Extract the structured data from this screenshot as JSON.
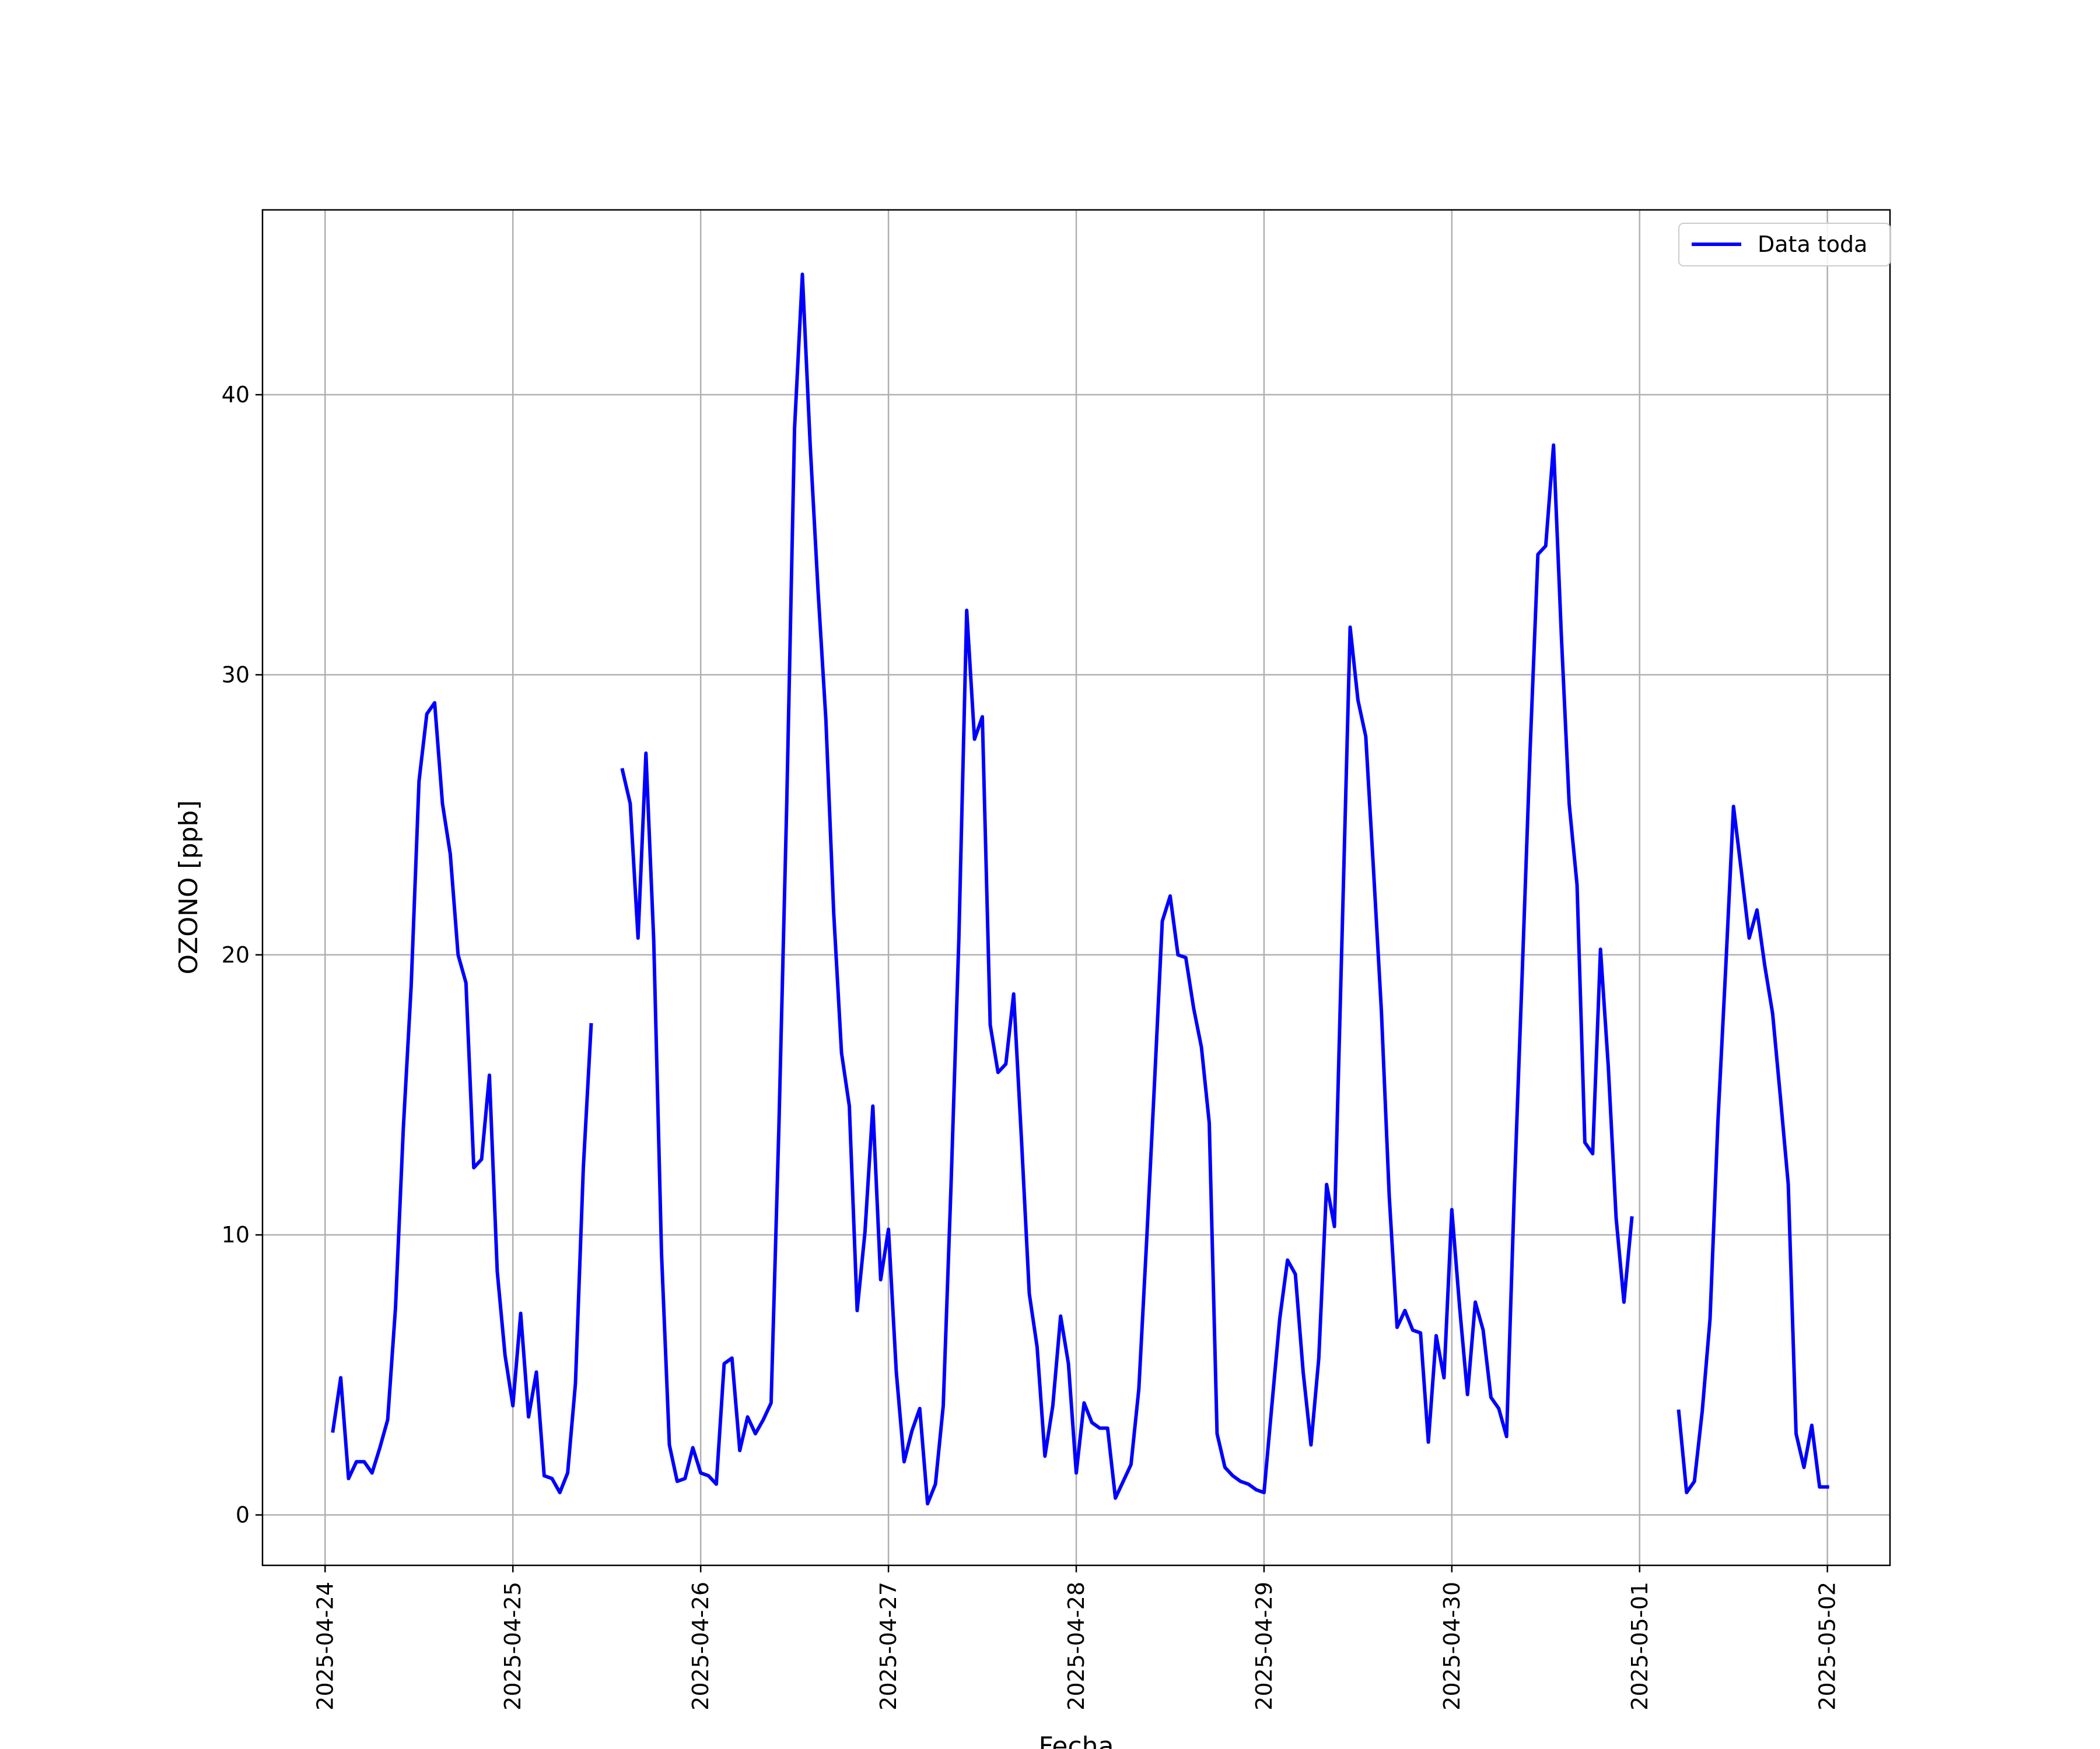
{
  "chart_data": {
    "type": "line",
    "xlabel": "Fecha",
    "ylabel": "OZONO [ppb]",
    "xlim": [
      "2025-04-23T16:00",
      "2025-05-02T08:00"
    ],
    "ylim": [
      -1.8,
      46.6
    ],
    "x_ticks": [
      "2025-04-24",
      "2025-04-25",
      "2025-04-26",
      "2025-04-27",
      "2025-04-28",
      "2025-04-29",
      "2025-04-30",
      "2025-05-01",
      "2025-05-02"
    ],
    "y_ticks": [
      0,
      10,
      20,
      30,
      40
    ],
    "grid": true,
    "legend": {
      "position": "top-right",
      "entries": [
        "Data toda"
      ]
    },
    "series": [
      {
        "name": "Data toda",
        "color": "#0000ff",
        "points": [
          [
            "2025-04-24T01:00",
            3.0
          ],
          [
            "2025-04-24T02:00",
            4.9
          ],
          [
            "2025-04-24T03:00",
            1.3
          ],
          [
            "2025-04-24T04:00",
            1.9
          ],
          [
            "2025-04-24T05:00",
            1.9
          ],
          [
            "2025-04-24T06:00",
            1.5
          ],
          [
            "2025-04-24T07:00",
            2.4
          ],
          [
            "2025-04-24T08:00",
            3.4
          ],
          [
            "2025-04-24T09:00",
            7.4
          ],
          [
            "2025-04-24T10:00",
            13.8
          ],
          [
            "2025-04-24T11:00",
            18.9
          ],
          [
            "2025-04-24T12:00",
            26.2
          ],
          [
            "2025-04-24T13:00",
            28.6
          ],
          [
            "2025-04-24T14:00",
            29.0
          ],
          [
            "2025-04-24T15:00",
            25.4
          ],
          [
            "2025-04-24T16:00",
            23.6
          ],
          [
            "2025-04-24T17:00",
            20.0
          ],
          [
            "2025-04-24T18:00",
            19.0
          ],
          [
            "2025-04-24T19:00",
            12.4
          ],
          [
            "2025-04-24T20:00",
            12.7
          ],
          [
            "2025-04-24T21:00",
            15.7
          ],
          [
            "2025-04-24T22:00",
            8.7
          ],
          [
            "2025-04-24T23:00",
            5.7
          ],
          [
            "2025-04-25T00:00",
            3.9
          ],
          [
            "2025-04-25T01:00",
            7.2
          ],
          [
            "2025-04-25T02:00",
            3.5
          ],
          [
            "2025-04-25T03:00",
            5.1
          ],
          [
            "2025-04-25T04:00",
            1.4
          ],
          [
            "2025-04-25T05:00",
            1.3
          ],
          [
            "2025-04-25T06:00",
            0.8
          ],
          [
            "2025-04-25T07:00",
            1.5
          ],
          [
            "2025-04-25T08:00",
            4.7
          ],
          [
            "2025-04-25T09:00",
            12.4
          ],
          [
            "2025-04-25T10:00",
            17.5
          ],
          [
            "2025-04-25T11:00",
            null
          ],
          [
            "2025-04-25T12:00",
            null
          ],
          [
            "2025-04-25T13:00",
            null
          ],
          [
            "2025-04-25T14:00",
            26.6
          ],
          [
            "2025-04-25T15:00",
            25.4
          ],
          [
            "2025-04-25T16:00",
            20.6
          ],
          [
            "2025-04-25T17:00",
            27.2
          ],
          [
            "2025-04-25T18:00",
            20.5
          ],
          [
            "2025-04-25T19:00",
            9.3
          ],
          [
            "2025-04-25T20:00",
            2.5
          ],
          [
            "2025-04-25T21:00",
            1.2
          ],
          [
            "2025-04-25T22:00",
            1.3
          ],
          [
            "2025-04-25T23:00",
            2.4
          ],
          [
            "2025-04-26T00:00",
            1.5
          ],
          [
            "2025-04-26T01:00",
            1.4
          ],
          [
            "2025-04-26T02:00",
            1.1
          ],
          [
            "2025-04-26T03:00",
            5.4
          ],
          [
            "2025-04-26T04:00",
            5.6
          ],
          [
            "2025-04-26T05:00",
            2.3
          ],
          [
            "2025-04-26T06:00",
            3.5
          ],
          [
            "2025-04-26T07:00",
            2.9
          ],
          [
            "2025-04-26T08:00",
            3.4
          ],
          [
            "2025-04-26T09:00",
            4.0
          ],
          [
            "2025-04-26T10:00",
            13.9
          ],
          [
            "2025-04-26T11:00",
            25.4
          ],
          [
            "2025-04-26T12:00",
            38.8
          ],
          [
            "2025-04-26T13:00",
            44.3
          ],
          [
            "2025-04-26T14:00",
            38.2
          ],
          [
            "2025-04-26T15:00",
            33.0
          ],
          [
            "2025-04-26T16:00",
            28.4
          ],
          [
            "2025-04-26T17:00",
            21.5
          ],
          [
            "2025-04-26T18:00",
            16.5
          ],
          [
            "2025-04-26T19:00",
            14.6
          ],
          [
            "2025-04-26T20:00",
            7.3
          ],
          [
            "2025-04-26T21:00",
            10.1
          ],
          [
            "2025-04-26T22:00",
            14.6
          ],
          [
            "2025-04-26T23:00",
            8.4
          ],
          [
            "2025-04-27T00:00",
            10.2
          ],
          [
            "2025-04-27T01:00",
            5.1
          ],
          [
            "2025-04-27T02:00",
            1.9
          ],
          [
            "2025-04-27T03:00",
            3.0
          ],
          [
            "2025-04-27T04:00",
            3.8
          ],
          [
            "2025-04-27T05:00",
            0.4
          ],
          [
            "2025-04-27T06:00",
            1.1
          ],
          [
            "2025-04-27T07:00",
            3.9
          ],
          [
            "2025-04-27T08:00",
            11.8
          ],
          [
            "2025-04-27T09:00",
            20.6
          ],
          [
            "2025-04-27T10:00",
            32.3
          ],
          [
            "2025-04-27T11:00",
            27.7
          ],
          [
            "2025-04-27T12:00",
            28.5
          ],
          [
            "2025-04-27T13:00",
            17.5
          ],
          [
            "2025-04-27T14:00",
            15.8
          ],
          [
            "2025-04-27T15:00",
            16.1
          ],
          [
            "2025-04-27T16:00",
            18.6
          ],
          [
            "2025-04-27T17:00",
            13.4
          ],
          [
            "2025-04-27T18:00",
            7.9
          ],
          [
            "2025-04-27T19:00",
            6.0
          ],
          [
            "2025-04-27T20:00",
            2.1
          ],
          [
            "2025-04-27T21:00",
            3.9
          ],
          [
            "2025-04-27T22:00",
            7.1
          ],
          [
            "2025-04-27T23:00",
            5.4
          ],
          [
            "2025-04-28T00:00",
            1.5
          ],
          [
            "2025-04-28T01:00",
            4.0
          ],
          [
            "2025-04-28T02:00",
            3.3
          ],
          [
            "2025-04-28T03:00",
            3.1
          ],
          [
            "2025-04-28T04:00",
            3.1
          ],
          [
            "2025-04-28T05:00",
            0.6
          ],
          [
            "2025-04-28T06:00",
            1.2
          ],
          [
            "2025-04-28T07:00",
            1.8
          ],
          [
            "2025-04-28T08:00",
            4.5
          ],
          [
            "2025-04-28T09:00",
            9.8
          ],
          [
            "2025-04-28T10:00",
            15.4
          ],
          [
            "2025-04-28T11:00",
            21.2
          ],
          [
            "2025-04-28T12:00",
            22.1
          ],
          [
            "2025-04-28T13:00",
            20.0
          ],
          [
            "2025-04-28T14:00",
            19.9
          ],
          [
            "2025-04-28T15:00",
            18.1
          ],
          [
            "2025-04-28T16:00",
            16.7
          ],
          [
            "2025-04-28T17:00",
            14.0
          ],
          [
            "2025-04-28T18:00",
            2.9
          ],
          [
            "2025-04-28T19:00",
            1.7
          ],
          [
            "2025-04-28T20:00",
            1.4
          ],
          [
            "2025-04-28T21:00",
            1.2
          ],
          [
            "2025-04-28T22:00",
            1.1
          ],
          [
            "2025-04-28T23:00",
            0.9
          ],
          [
            "2025-04-29T00:00",
            0.8
          ],
          [
            "2025-04-29T01:00",
            3.9
          ],
          [
            "2025-04-29T02:00",
            7.0
          ],
          [
            "2025-04-29T03:00",
            9.1
          ],
          [
            "2025-04-29T04:00",
            8.6
          ],
          [
            "2025-04-29T05:00",
            5.1
          ],
          [
            "2025-04-29T06:00",
            2.5
          ],
          [
            "2025-04-29T07:00",
            5.6
          ],
          [
            "2025-04-29T08:00",
            11.8
          ],
          [
            "2025-04-29T09:00",
            10.3
          ],
          [
            "2025-04-29T10:00",
            21.0
          ],
          [
            "2025-04-29T11:00",
            31.7
          ],
          [
            "2025-04-29T12:00",
            29.1
          ],
          [
            "2025-04-29T13:00",
            27.8
          ],
          [
            "2025-04-29T14:00",
            23.0
          ],
          [
            "2025-04-29T15:00",
            18.0
          ],
          [
            "2025-04-29T16:00",
            11.4
          ],
          [
            "2025-04-29T17:00",
            6.7
          ],
          [
            "2025-04-29T18:00",
            7.3
          ],
          [
            "2025-04-29T19:00",
            6.6
          ],
          [
            "2025-04-29T20:00",
            6.5
          ],
          [
            "2025-04-29T21:00",
            2.6
          ],
          [
            "2025-04-29T22:00",
            6.4
          ],
          [
            "2025-04-29T23:00",
            4.9
          ],
          [
            "2025-04-30T00:00",
            10.9
          ],
          [
            "2025-04-30T01:00",
            7.4
          ],
          [
            "2025-04-30T02:00",
            4.3
          ],
          [
            "2025-04-30T03:00",
            7.6
          ],
          [
            "2025-04-30T04:00",
            6.6
          ],
          [
            "2025-04-30T05:00",
            4.2
          ],
          [
            "2025-04-30T06:00",
            3.8
          ],
          [
            "2025-04-30T07:00",
            2.8
          ],
          [
            "2025-04-30T08:00",
            11.7
          ],
          [
            "2025-04-30T09:00",
            19.4
          ],
          [
            "2025-04-30T10:00",
            27.3
          ],
          [
            "2025-04-30T11:00",
            34.3
          ],
          [
            "2025-04-30T12:00",
            34.6
          ],
          [
            "2025-04-30T13:00",
            38.2
          ],
          [
            "2025-04-30T14:00",
            31.4
          ],
          [
            "2025-04-30T15:00",
            25.4
          ],
          [
            "2025-04-30T16:00",
            22.5
          ],
          [
            "2025-04-30T17:00",
            13.3
          ],
          [
            "2025-04-30T18:00",
            12.9
          ],
          [
            "2025-04-30T19:00",
            20.2
          ],
          [
            "2025-04-30T20:00",
            16.0
          ],
          [
            "2025-04-30T21:00",
            10.6
          ],
          [
            "2025-04-30T22:00",
            7.6
          ],
          [
            "2025-04-30T23:00",
            10.6
          ],
          [
            "2025-05-01T00:00",
            null
          ],
          [
            "2025-05-01T01:00",
            null
          ],
          [
            "2025-05-01T02:00",
            null
          ],
          [
            "2025-05-01T03:00",
            null
          ],
          [
            "2025-05-01T04:00",
            null
          ],
          [
            "2025-05-01T05:00",
            3.7
          ],
          [
            "2025-05-01T06:00",
            0.8
          ],
          [
            "2025-05-01T07:00",
            1.2
          ],
          [
            "2025-05-01T08:00",
            3.7
          ],
          [
            "2025-05-01T09:00",
            7.0
          ],
          [
            "2025-05-01T10:00",
            14.0
          ],
          [
            "2025-05-01T11:00",
            19.5
          ],
          [
            "2025-05-01T12:00",
            25.3
          ],
          [
            "2025-05-01T13:00",
            23.0
          ],
          [
            "2025-05-01T14:00",
            20.6
          ],
          [
            "2025-05-01T15:00",
            21.6
          ],
          [
            "2025-05-01T16:00",
            19.6
          ],
          [
            "2025-05-01T17:00",
            17.9
          ],
          [
            "2025-05-01T18:00",
            14.9
          ],
          [
            "2025-05-01T19:00",
            11.8
          ],
          [
            "2025-05-01T20:00",
            2.9
          ],
          [
            "2025-05-01T21:00",
            1.7
          ],
          [
            "2025-05-01T22:00",
            3.2
          ],
          [
            "2025-05-01T23:00",
            1.0
          ],
          [
            "2025-05-02T00:00",
            1.0
          ]
        ]
      }
    ]
  }
}
